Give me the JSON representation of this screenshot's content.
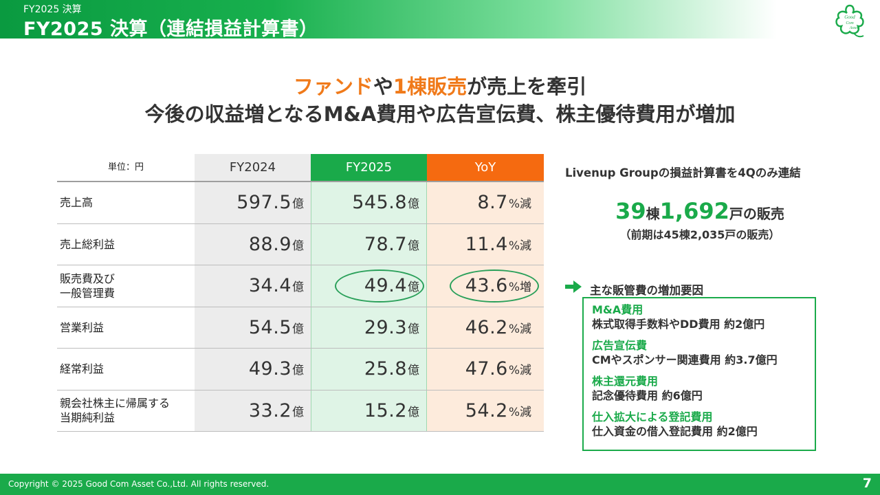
{
  "header": {
    "subtitle": "FY2025 決算",
    "title": "FY2025 決算（連結損益計算書）",
    "logo_text": "Good Com Asset"
  },
  "headline": {
    "line1_part1": "ファンド",
    "line1_part2": "や",
    "line1_part3": "1棟販売",
    "line1_part4": "が売上を牽引",
    "line2": "今後の収益増となるM&A費用や広告宣伝費、株主優待費用が増加"
  },
  "table": {
    "unit_label": "単位：円",
    "columns": [
      "FY2024",
      "FY2025",
      "YoY"
    ],
    "rows": [
      {
        "label1": "売上高",
        "label2": "",
        "fy2024": "597.5",
        "fy2024_unit": "億",
        "fy2025": "545.8",
        "fy2025_unit": "億",
        "yoy": "8.7",
        "yoy_unit": "%減"
      },
      {
        "label1": "売上総利益",
        "label2": "",
        "fy2024": "88.9",
        "fy2024_unit": "億",
        "fy2025": "78.7",
        "fy2025_unit": "億",
        "yoy": "11.4",
        "yoy_unit": "%減"
      },
      {
        "label1": "販売費及び",
        "label2": "一般管理費",
        "fy2024": "34.4",
        "fy2024_unit": "億",
        "fy2025": "49.4",
        "fy2025_unit": "億",
        "yoy": "43.6",
        "yoy_unit": "%増"
      },
      {
        "label1": "営業利益",
        "label2": "",
        "fy2024": "54.5",
        "fy2024_unit": "億",
        "fy2025": "29.3",
        "fy2025_unit": "億",
        "yoy": "46.2",
        "yoy_unit": "%減"
      },
      {
        "label1": "経常利益",
        "label2": "",
        "fy2024": "49.3",
        "fy2024_unit": "億",
        "fy2025": "25.8",
        "fy2025_unit": "億",
        "yoy": "47.6",
        "yoy_unit": "%減"
      },
      {
        "label1": "親会社株主に帰属する",
        "label2": "当期純利益",
        "fy2024": "33.2",
        "fy2024_unit": "億",
        "fy2025": "15.2",
        "fy2025_unit": "億",
        "yoy": "54.2",
        "yoy_unit": "%減"
      }
    ]
  },
  "right_panel": {
    "note": "Livenup Groupの損益計算書を4Qのみ連結",
    "sales_buildings": "39",
    "sales_buildings_unit": "棟",
    "sales_units": "1,692",
    "sales_units_suffix": "戸の販売",
    "previous": "（前期は45棟2,035戸の販売）",
    "box_title": "主な販管費の増加要因",
    "items": [
      {
        "heading": "M&A費用",
        "detail": "株式取得手数料やDD費用 約2億円"
      },
      {
        "heading": "広告宣伝費",
        "detail": "CMやスポンサー関連費用 約3.7億円"
      },
      {
        "heading": "株主還元費用",
        "detail": "記念優待費用 約6億円"
      },
      {
        "heading": "仕入拡大による登記費用",
        "detail": "仕入資金の借入登記費用 約2億円"
      }
    ]
  },
  "footer": {
    "copyright": "Copyright © 2025 Good Com Asset Co.,Ltd. All rights reserved.",
    "page_number": "7"
  },
  "colors": {
    "brand_green": "#1aaa4a",
    "accent_orange": "#f56a10",
    "headline_orange": "#f07a1a"
  }
}
